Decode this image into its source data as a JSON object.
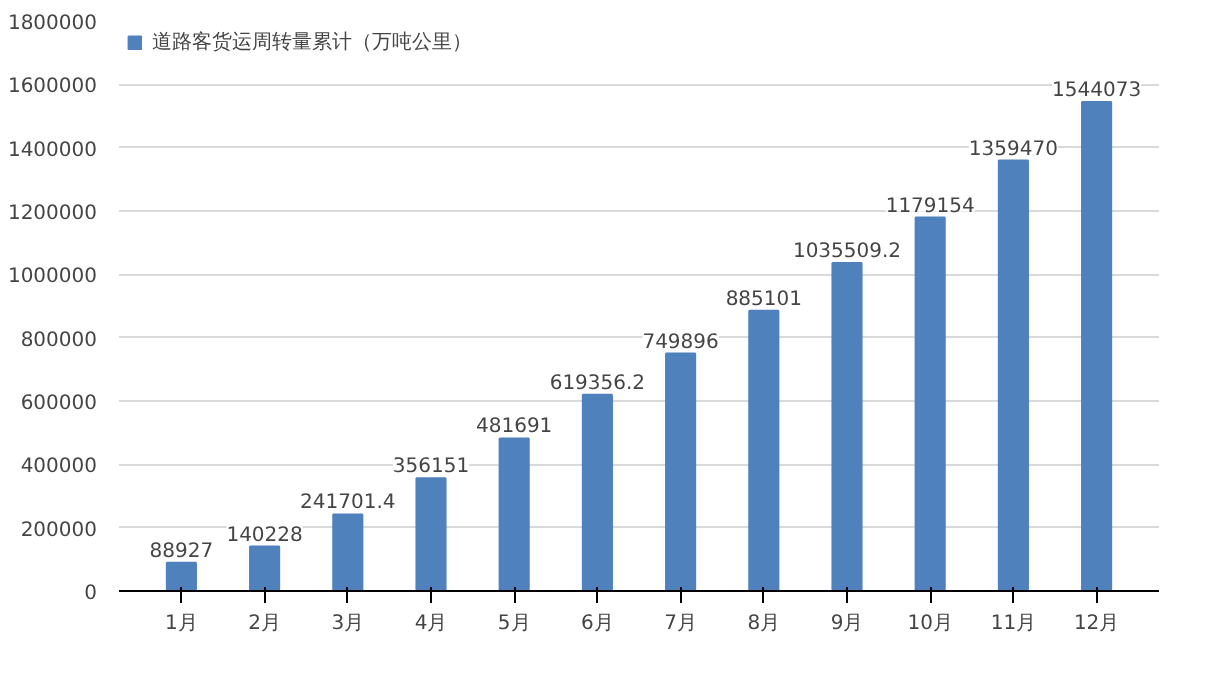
{
  "chart_data": {
    "type": "bar",
    "categories": [
      "1月",
      "2月",
      "3月",
      "4月",
      "5月",
      "6月",
      "7月",
      "8月",
      "9月",
      "10月",
      "11月",
      "12月"
    ],
    "series": [
      {
        "name": "道路客货运周转量累计（万吨公里）",
        "color": "#4f81bd",
        "values": [
          88927,
          140228,
          241701.4,
          356151,
          481691,
          619356.2,
          749896,
          885101,
          1035509.2,
          1179154,
          1359470,
          1544073
        ]
      }
    ],
    "ylim": [
      0,
      1800000
    ],
    "yticks": [
      0,
      200000,
      400000,
      600000,
      800000,
      1000000,
      1200000,
      1400000,
      1600000,
      1800000
    ],
    "grid": "y",
    "legend": "top left",
    "data_labels": true
  }
}
